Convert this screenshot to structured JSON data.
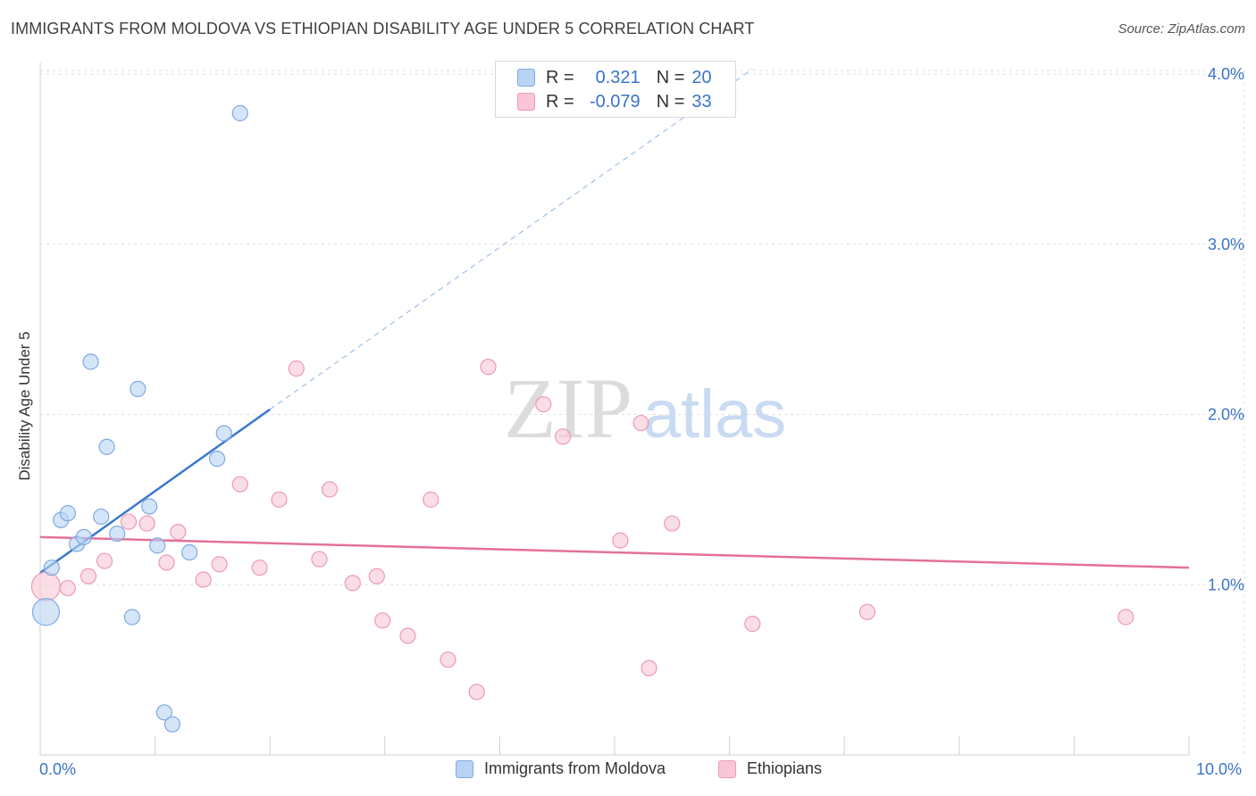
{
  "header": {
    "title": "IMMIGRANTS FROM MOLDOVA VS ETHIOPIAN DISABILITY AGE UNDER 5 CORRELATION CHART",
    "source": "Source: ZipAtlas.com"
  },
  "watermark": {
    "zip": "ZIP",
    "atlas": "atlas"
  },
  "legend_top": {
    "rows": [
      {
        "r_label": "R =",
        "r_value": "0.321",
        "n_label": "N =",
        "n_value": "20",
        "color": "#a9c9f3"
      },
      {
        "r_label": "R =",
        "r_value": "-0.079",
        "n_label": "N =",
        "n_value": "33",
        "color": "#f7b8cc"
      }
    ]
  },
  "colors": {
    "moldova_fill": "#b9d3f4",
    "moldova_stroke": "#7fa9e0",
    "moldova_line": "#3a78d0",
    "ethiopia_fill": "#f9c6d6",
    "ethiopia_stroke": "#ee9ab5",
    "ethiopia_line": "#e4709a",
    "tick_text": "#3a74c9",
    "grid": "#dedede"
  },
  "chart_data": {
    "type": "scatter",
    "title": "IMMIGRANTS FROM MOLDOVA VS ETHIOPIAN DISABILITY AGE UNDER 5 CORRELATION CHART",
    "xlabel": "",
    "ylabel": "Disability Age Under 5",
    "xlim": [
      0,
      10
    ],
    "ylim": [
      0,
      4.2
    ],
    "x_tick_labels": [
      "0.0%",
      "10.0%"
    ],
    "y_ticks": [
      1,
      2,
      3,
      4
    ],
    "y_tick_labels": [
      "1.0%",
      "2.0%",
      "3.0%",
      "4.0%"
    ],
    "grid": true,
    "legend_position": "bottom",
    "series": [
      {
        "name": "Immigrants from Moldova",
        "points": [
          {
            "x": 0.05,
            "y": 0.84,
            "big": true
          },
          {
            "x": 0.1,
            "y": 1.1
          },
          {
            "x": 0.18,
            "y": 1.38
          },
          {
            "x": 0.24,
            "y": 1.42
          },
          {
            "x": 0.32,
            "y": 1.24
          },
          {
            "x": 0.38,
            "y": 1.28
          },
          {
            "x": 0.44,
            "y": 2.31
          },
          {
            "x": 0.53,
            "y": 1.4
          },
          {
            "x": 0.58,
            "y": 1.81
          },
          {
            "x": 0.67,
            "y": 1.3
          },
          {
            "x": 0.8,
            "y": 0.81
          },
          {
            "x": 0.85,
            "y": 2.15
          },
          {
            "x": 0.95,
            "y": 1.46
          },
          {
            "x": 1.02,
            "y": 1.23
          },
          {
            "x": 1.08,
            "y": 0.25
          },
          {
            "x": 1.15,
            "y": 0.18
          },
          {
            "x": 1.3,
            "y": 1.19
          },
          {
            "x": 1.54,
            "y": 1.74
          },
          {
            "x": 1.6,
            "y": 1.89
          },
          {
            "x": 1.74,
            "y": 3.77
          }
        ],
        "trend": {
          "x1": 0.0,
          "y1": 1.07,
          "x2": 2.0,
          "y2": 2.03,
          "x_dash_end": 6.2,
          "y_dash_end": 4.03
        }
      },
      {
        "name": "Ethiopians",
        "points": [
          {
            "x": 0.05,
            "y": 0.99,
            "big": true
          },
          {
            "x": 0.24,
            "y": 0.98
          },
          {
            "x": 0.42,
            "y": 1.05
          },
          {
            "x": 0.56,
            "y": 1.14
          },
          {
            "x": 0.77,
            "y": 1.37
          },
          {
            "x": 0.93,
            "y": 1.36
          },
          {
            "x": 1.1,
            "y": 1.13
          },
          {
            "x": 1.2,
            "y": 1.31
          },
          {
            "x": 1.42,
            "y": 1.03
          },
          {
            "x": 1.56,
            "y": 1.12
          },
          {
            "x": 1.74,
            "y": 1.59
          },
          {
            "x": 1.91,
            "y": 1.1
          },
          {
            "x": 2.08,
            "y": 1.5
          },
          {
            "x": 2.23,
            "y": 2.27
          },
          {
            "x": 2.43,
            "y": 1.15
          },
          {
            "x": 2.52,
            "y": 1.56
          },
          {
            "x": 2.72,
            "y": 1.01
          },
          {
            "x": 2.93,
            "y": 1.05
          },
          {
            "x": 2.98,
            "y": 0.79
          },
          {
            "x": 3.2,
            "y": 0.7
          },
          {
            "x": 3.4,
            "y": 1.5
          },
          {
            "x": 3.55,
            "y": 0.56
          },
          {
            "x": 3.8,
            "y": 0.37
          },
          {
            "x": 3.9,
            "y": 2.28
          },
          {
            "x": 4.38,
            "y": 2.06
          },
          {
            "x": 4.55,
            "y": 1.87
          },
          {
            "x": 5.05,
            "y": 1.26
          },
          {
            "x": 5.23,
            "y": 1.95
          },
          {
            "x": 5.3,
            "y": 0.51
          },
          {
            "x": 5.5,
            "y": 1.36
          },
          {
            "x": 6.2,
            "y": 0.77
          },
          {
            "x": 7.2,
            "y": 0.84
          },
          {
            "x": 9.45,
            "y": 0.81
          }
        ],
        "trend": {
          "x1": 0.0,
          "y1": 1.28,
          "x2": 10.0,
          "y2": 1.1
        }
      }
    ]
  }
}
